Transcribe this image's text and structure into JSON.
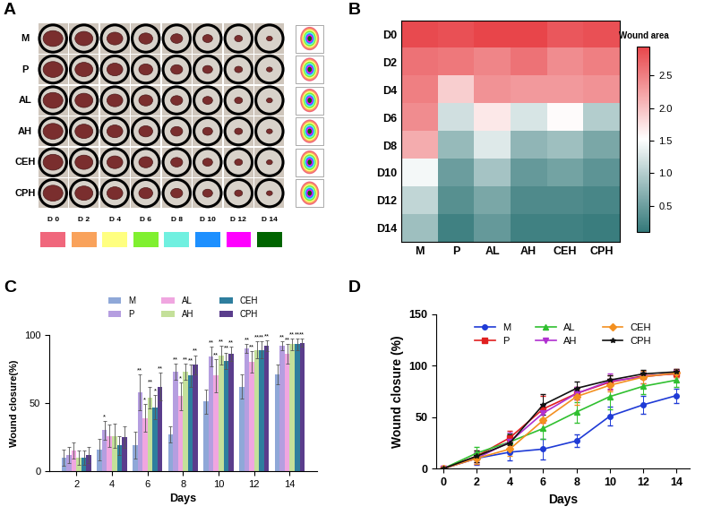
{
  "chart_data": [
    {
      "type": "image_grid",
      "title": "A",
      "rows": [
        "M",
        "P",
        "AL",
        "AH",
        "CEH",
        "CPH"
      ],
      "columns": [
        "D 0",
        "D 2",
        "D 4",
        "D 6",
        "D 8",
        "D 10",
        "D 12",
        "D 14"
      ],
      "colors": [
        "#f0677c",
        "#f9a25b",
        "#ffff80",
        "#80f030",
        "#70f0e0",
        "#1e90ff",
        "#ff00ff",
        "#006400"
      ]
    },
    {
      "type": "heatmap",
      "title": "B",
      "x_categories": [
        "M",
        "P",
        "AL",
        "AH",
        "CEH",
        "CPH"
      ],
      "y_categories": [
        "D0",
        "D2",
        "D4",
        "D6",
        "D8",
        "D10",
        "D12",
        "D14"
      ],
      "cells": [
        [
          2.9,
          2.85,
          2.95,
          2.95,
          2.8,
          2.85
        ],
        [
          2.6,
          2.55,
          2.45,
          2.6,
          2.4,
          2.5
        ],
        [
          2.5,
          1.9,
          2.35,
          2.3,
          2.3,
          2.35
        ],
        [
          2.4,
          1.2,
          1.7,
          1.25,
          1.55,
          1.0
        ],
        [
          2.15,
          0.8,
          1.3,
          0.75,
          0.85,
          0.6
        ],
        [
          1.45,
          0.5,
          0.9,
          0.45,
          0.55,
          0.4
        ],
        [
          1.1,
          0.35,
          0.6,
          0.3,
          0.3,
          0.25
        ],
        [
          0.85,
          0.2,
          0.45,
          0.2,
          0.2,
          0.15
        ]
      ],
      "colorbar_title": "Wound area",
      "colorbar_range": [
        0.1,
        2.95
      ],
      "colorbar_ticks": [
        {
          "value": 0.5,
          "label": "0.5"
        },
        {
          "value": 1.0,
          "label": "1.0"
        },
        {
          "value": 1.5,
          "label": "1.5"
        },
        {
          "value": 2.0,
          "label": "2.0"
        },
        {
          "value": 2.5,
          "label": "2.5"
        }
      ]
    },
    {
      "type": "bar",
      "title": "C",
      "categories": [
        "2",
        "4",
        "6",
        "8",
        "10",
        "12",
        "14"
      ],
      "x_label": "Days",
      "y_label": "Wound closure(%)",
      "ylim": [
        0,
        100
      ],
      "yticks": [
        0,
        50,
        100
      ],
      "legend": "top",
      "series": [
        {
          "name": "M",
          "color": "#8fa8d8",
          "values": [
            10,
            16,
            19,
            27,
            51,
            62,
            71
          ],
          "errors": [
            6,
            8,
            10,
            6,
            9,
            9,
            7
          ],
          "annotations": [
            null,
            null,
            null,
            null,
            null,
            null,
            null
          ]
        },
        {
          "name": "P",
          "color": "#b59ee0",
          "values": [
            12,
            30,
            58,
            73,
            84,
            90,
            92
          ],
          "errors": [
            6,
            7,
            13,
            6,
            7,
            3,
            3
          ],
          "annotations": [
            null,
            "*",
            "**",
            "**",
            "**",
            "**",
            "**"
          ]
        },
        {
          "name": "AL",
          "color": "#f0a6e0",
          "values": [
            15,
            26,
            39,
            55,
            70,
            80,
            86
          ],
          "errors": [
            6,
            8,
            10,
            10,
            12,
            8,
            7
          ],
          "annotations": [
            null,
            null,
            "*",
            "*",
            "**",
            "**",
            "**"
          ]
        },
        {
          "name": "AH",
          "color": "#c4e09a",
          "values": [
            10,
            26,
            54,
            73,
            85,
            89,
            93
          ],
          "errors": [
            5,
            9,
            8,
            6,
            7,
            6,
            4
          ],
          "annotations": [
            null,
            null,
            "**",
            "**",
            "**",
            "**",
            "**"
          ]
        },
        {
          "name": "CEH",
          "color": "#2e7e9e",
          "values": [
            10,
            19,
            47,
            70,
            81,
            89,
            93
          ],
          "errors": [
            5,
            7,
            9,
            8,
            6,
            6,
            4
          ],
          "annotations": [
            null,
            null,
            "*",
            "**",
            "**",
            "**",
            "**"
          ]
        },
        {
          "name": "CPH",
          "color": "#5a3d8c",
          "values": [
            12,
            25,
            62,
            78,
            86,
            92,
            94
          ],
          "errors": [
            6,
            8,
            10,
            7,
            5,
            4,
            3
          ],
          "annotations": [
            null,
            null,
            "**",
            "**",
            "**",
            "**",
            "**"
          ]
        }
      ]
    },
    {
      "type": "line",
      "title": "D",
      "x": [
        0,
        2,
        4,
        6,
        8,
        10,
        12,
        14
      ],
      "x_label": "Days",
      "y_label": "Wound closure (%)",
      "xlim": [
        -0.4,
        14.8
      ],
      "xticks": [
        0,
        2,
        4,
        6,
        8,
        10,
        12,
        14
      ],
      "ylim": [
        0,
        150
      ],
      "yticks": [
        0,
        50,
        100,
        150
      ],
      "legend": "upper center",
      "series": [
        {
          "name": "M",
          "color": "#1f3bd6",
          "marker": "circle",
          "values": [
            0,
            10,
            16,
            19,
            27,
            51,
            62,
            71
          ],
          "errors": [
            0,
            6,
            8,
            10,
            6,
            9,
            9,
            7
          ]
        },
        {
          "name": "P",
          "color": "#e02020",
          "marker": "square",
          "values": [
            0,
            12,
            30,
            58,
            73,
            84,
            90,
            92
          ],
          "errors": [
            0,
            6,
            7,
            13,
            6,
            7,
            3,
            3
          ]
        },
        {
          "name": "AL",
          "color": "#30c030",
          "marker": "triangle_up",
          "values": [
            0,
            15,
            26,
            39,
            55,
            70,
            80,
            86
          ],
          "errors": [
            0,
            6,
            8,
            10,
            10,
            12,
            8,
            7
          ]
        },
        {
          "name": "AH",
          "color": "#b030d0",
          "marker": "triangle_down",
          "values": [
            0,
            10,
            26,
            54,
            73,
            85,
            89,
            93
          ],
          "errors": [
            0,
            5,
            9,
            8,
            6,
            7,
            6,
            4
          ]
        },
        {
          "name": "CEH",
          "color": "#f39020",
          "marker": "diamond",
          "values": [
            0,
            10,
            19,
            47,
            70,
            81,
            89,
            93
          ],
          "errors": [
            0,
            5,
            7,
            9,
            8,
            6,
            6,
            4
          ]
        },
        {
          "name": "CPH",
          "color": "#111111",
          "marker": "star",
          "values": [
            0,
            12,
            25,
            62,
            78,
            86,
            92,
            94
          ],
          "errors": [
            0,
            6,
            8,
            10,
            7,
            5,
            4,
            3
          ]
        }
      ]
    }
  ]
}
